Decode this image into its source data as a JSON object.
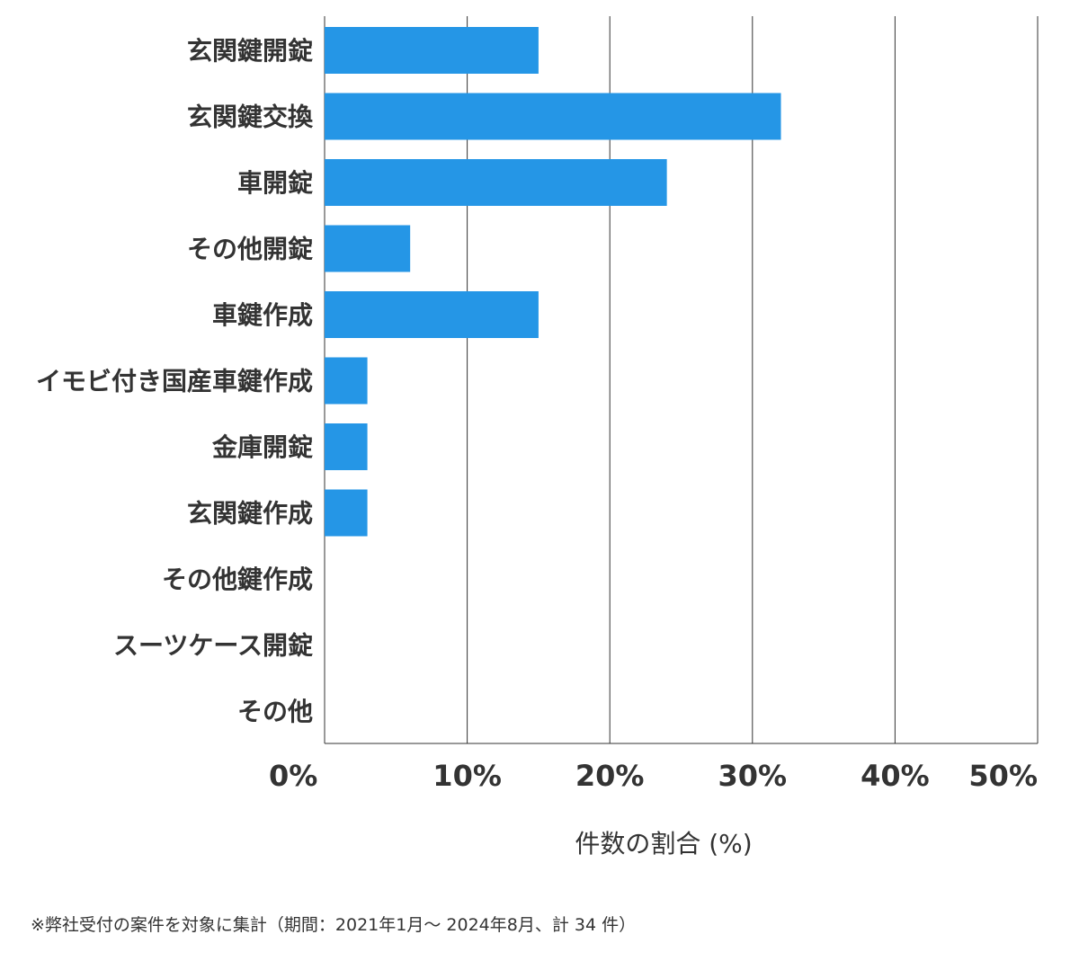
{
  "chart_data": {
    "type": "bar",
    "orientation": "horizontal",
    "categories": [
      "玄関鍵開錠",
      "玄関鍵交換",
      "車開錠",
      "その他開錠",
      "車鍵作成",
      "イモビ付き国産車鍵作成",
      "金庫開錠",
      "玄関鍵作成",
      "その他鍵作成",
      "スーツケース開錠",
      "その他"
    ],
    "values": [
      15,
      32,
      24,
      6,
      15,
      3,
      3,
      3,
      0,
      0,
      0
    ],
    "xlim": [
      0,
      50
    ],
    "xticks": [
      0,
      10,
      20,
      30,
      40,
      50
    ],
    "xtick_labels": [
      "0%",
      "10%",
      "20%",
      "30%",
      "40%",
      "50%"
    ],
    "xlabel": "件数の割合 (%)",
    "grid": "vertical",
    "bar_color": "#2596e6"
  },
  "footnote": "※弊社受付の案件を対象に集計（期間：2021年1月～ 2024年8月、計 34 件）"
}
